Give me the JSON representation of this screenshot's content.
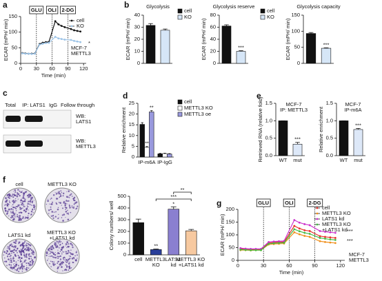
{
  "panel_letters": [
    "a",
    "b",
    "c",
    "d",
    "e",
    "f",
    "g"
  ],
  "blot": {
    "lanes": [
      "Total",
      "IP: LATS1",
      "IgG",
      "Follow through"
    ],
    "rows": [
      "WB: LATS1",
      "WB: METTL3"
    ]
  },
  "colonies": {
    "labels": [
      "cell",
      "METTL3 KO",
      "LATS1 kd",
      "METTL3 KO +LATS1 kd"
    ]
  },
  "chart_data": [
    {
      "type": "line",
      "xlabel": "Time (min)",
      "ylabel": "ECAR (mPH/ min)",
      "x": [
        3,
        9,
        15,
        21,
        27,
        36,
        42,
        48,
        54,
        66,
        72,
        78,
        84,
        96,
        102,
        108,
        114
      ],
      "xlim": [
        0,
        125
      ],
      "xticks": [
        0,
        30,
        60,
        90,
        120
      ],
      "ylim": [
        0,
        150
      ],
      "yticks": [
        0,
        50,
        100,
        150
      ],
      "events": [
        {
          "label": "GLU",
          "x": 30
        },
        {
          "label": "OLI",
          "x": 60
        },
        {
          "label": "2-DG",
          "x": 90
        }
      ],
      "series": [
        {
          "name": "cell",
          "color": "#111111",
          "values": [
            33,
            32,
            31,
            31,
            32,
            62,
            66,
            68,
            69,
            135,
            125,
            120,
            116,
            110,
            106,
            104,
            102
          ]
        },
        {
          "name": "KO",
          "color": "#9cc3e6",
          "values": [
            32,
            31,
            31,
            30,
            31,
            60,
            63,
            65,
            66,
            85,
            80,
            78,
            76,
            75,
            72,
            70,
            68
          ]
        }
      ],
      "significance": [
        "*"
      ],
      "annotation": [
        "MCF-7",
        "METTL3"
      ]
    },
    {
      "type": "bar",
      "title": "Glycolysis",
      "ylabel": "ECAR (mPH/ min)",
      "ylim": [
        0,
        40
      ],
      "yticks": [
        0,
        10,
        20,
        30,
        40
      ],
      "categories": [
        "cell",
        "KO"
      ],
      "legend": true,
      "colors": [
        "#111111",
        "#d6e6f7"
      ],
      "values": [
        31.5,
        27.5
      ],
      "errors": [
        1.5,
        1
      ]
    },
    {
      "type": "bar",
      "title": "Glycolysis reserve",
      "ylabel": "ECAR (mPH/ min)",
      "ylim": [
        0,
        80
      ],
      "yticks": [
        0,
        20,
        40,
        60,
        80
      ],
      "categories": [
        "cell",
        "KO"
      ],
      "legend": true,
      "colors": [
        "#111111",
        "#d6e6f7"
      ],
      "values": [
        62,
        20
      ],
      "errors": [
        2,
        1
      ],
      "significance": [
        null,
        "***"
      ]
    },
    {
      "type": "bar",
      "title": "Glycolysis capacity",
      "ylabel": "ECAR (mPH/ min)",
      "ylim": [
        0,
        150
      ],
      "yticks": [
        0,
        50,
        100,
        150
      ],
      "colors": [
        "#111111",
        "#d6e6f7"
      ],
      "values": [
        93,
        47
      ],
      "errors": [
        3,
        1.5
      ],
      "significance": [
        null,
        "***"
      ]
    },
    {
      "type": "grouped_bar",
      "ylabel": "Relative enrichment",
      "ylim": [
        0,
        25
      ],
      "yticks": [
        0,
        5,
        10,
        15,
        20,
        25
      ],
      "categories": [
        "IP-m6A",
        "IP-IgG"
      ],
      "series": [
        {
          "name": "cell",
          "color": "#111111",
          "values": [
            15.2,
            1.5
          ],
          "errors": [
            0.8,
            0.2
          ]
        },
        {
          "name": "METTL3 KO",
          "color": "#ffffff",
          "values": [
            4.5,
            1.6
          ],
          "errors": [
            0.4,
            0.2
          ],
          "significance": [
            "**",
            null
          ]
        },
        {
          "name": "METTL3 oe",
          "color": "#9999dd",
          "values": [
            21,
            1.4
          ],
          "errors": [
            0.6,
            0.2
          ],
          "significance": [
            "**",
            null
          ]
        }
      ]
    },
    {
      "type": "bar",
      "title": [
        "MCF-7",
        "IP: METTL3"
      ],
      "ylabel": "Retrieved RNA (relative fold)",
      "ylim": [
        0,
        1.5
      ],
      "yticks": [
        {
          "value": 0,
          "label": "0.0"
        },
        0.5,
        {
          "value": 1,
          "label": "1.0"
        },
        1.5
      ],
      "categories": [
        "WT",
        "mut"
      ],
      "colors": [
        "#111111",
        "#dde8f8"
      ],
      "values": [
        1.0,
        0.33
      ],
      "errors": [
        0,
        0.05
      ],
      "significance": [
        null,
        "***"
      ]
    },
    {
      "type": "bar",
      "title": [
        "MCF-7",
        "IP-m6A"
      ],
      "ylabel": "Relative enrichment",
      "ylim": [
        0,
        1.5
      ],
      "yticks": [
        {
          "value": 0,
          "label": "0.0"
        },
        0.5,
        {
          "value": 1,
          "label": "1.0"
        },
        1.5
      ],
      "categories": [
        "WT",
        "mut"
      ],
      "colors": [
        "#111111",
        "#dde8f8"
      ],
      "values": [
        1.0,
        0.75
      ],
      "errors": [
        0,
        0.03
      ],
      "significance": [
        null,
        "***"
      ]
    },
    {
      "type": "bar",
      "ylabel": "Colony numbers/ well",
      "ylim": [
        0,
        500
      ],
      "yticks": [
        0,
        100,
        200,
        300,
        400,
        500
      ],
      "categories": [
        "cell",
        "METTL3 KO",
        "LATS1 kd",
        "METTL3 KO +LATS1 kd"
      ],
      "colors": [
        "#111111",
        "#2a3f9a",
        "#8a7fd0",
        "#f7c9a0"
      ],
      "values": [
        275,
        45,
        390,
        205
      ],
      "errors": [
        30,
        5,
        20,
        12
      ],
      "significance": [
        null,
        "**",
        "*",
        null
      ],
      "annotations": [
        "***",
        "**"
      ]
    },
    {
      "type": "line",
      "xlabel": "Time (min)",
      "ylabel": "ECAR (mPH/ min)",
      "x": [
        3,
        9,
        15,
        21,
        27,
        36,
        42,
        48,
        54,
        66,
        72,
        78,
        84,
        96,
        102,
        108,
        114
      ],
      "xlim": [
        0,
        125
      ],
      "xticks": [
        0,
        30,
        60,
        90,
        120
      ],
      "ylim": [
        0,
        200
      ],
      "yticks": [
        0,
        50,
        100,
        150,
        200
      ],
      "events": [
        {
          "label": "GLU",
          "x": 30
        },
        {
          "label": "OLI",
          "x": 60
        },
        {
          "label": "2-DG",
          "x": 90
        }
      ],
      "series": [
        {
          "name": "cell",
          "color": "#e8302a",
          "values": [
            45,
            43,
            42,
            42,
            42,
            68,
            70,
            72,
            72,
            135,
            125,
            118,
            115,
            95,
            92,
            90,
            88
          ]
        },
        {
          "name": "METTL3 KO",
          "color": "#f0901e",
          "values": [
            40,
            40,
            39,
            40,
            40,
            62,
            64,
            65,
            66,
            110,
            102,
            96,
            92,
            75,
            72,
            70,
            68
          ]
        },
        {
          "name": "LATS1 kd",
          "color": "#cc33cc",
          "values": [
            48,
            46,
            45,
            45,
            45,
            72,
            74,
            75,
            76,
            158,
            148,
            142,
            138,
            115,
            112,
            110,
            108
          ]
        },
        {
          "name": "METTL3 KO +LATS1 kd",
          "color": "#44bb44",
          "values": [
            42,
            41,
            40,
            40,
            40,
            65,
            67,
            68,
            69,
            122,
            114,
            108,
            104,
            88,
            85,
            82,
            80
          ]
        }
      ],
      "significance": [
        "***",
        "***"
      ],
      "annotation": [
        "MCF-7",
        "METTL3"
      ]
    }
  ]
}
